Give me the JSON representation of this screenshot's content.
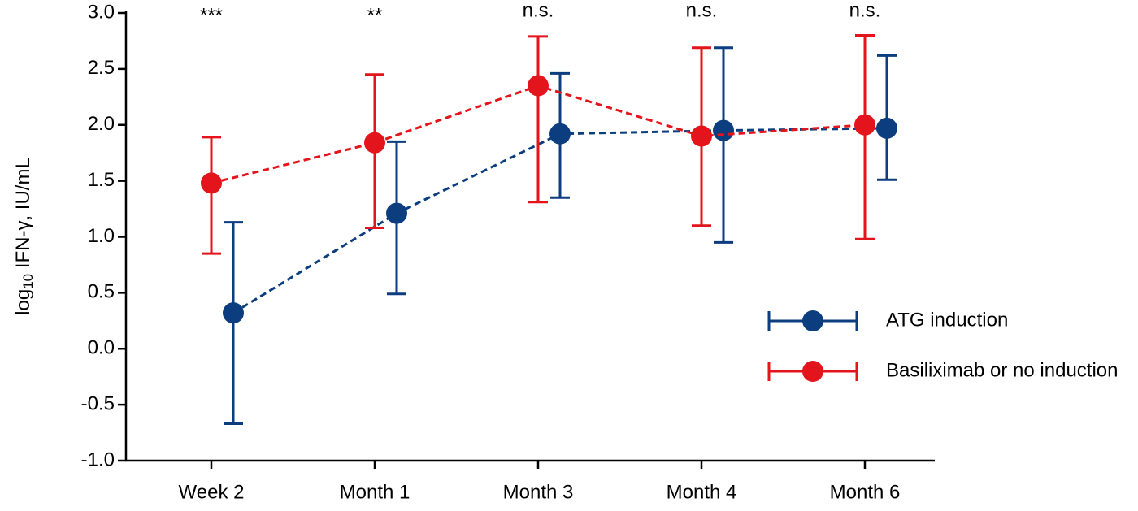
{
  "chart_data": {
    "type": "line",
    "ylabel": [
      "log",
      "10",
      " IFN-γ, IU/mL"
    ],
    "categories": [
      "Week 2",
      "Month 1",
      "Month 3",
      "Month 4",
      "Month 6"
    ],
    "annotations": [
      "***",
      "**",
      "n.s.",
      "n.s.",
      "n.s."
    ],
    "ylim": [
      -1,
      3
    ],
    "yticks": [
      {
        "value": -1,
        "label": "-1.0"
      },
      {
        "value": -0.5,
        "label": "-0.5"
      },
      {
        "value": 0,
        "label": "0.0"
      },
      {
        "value": 0.5,
        "label": "0.5"
      },
      {
        "value": 1,
        "label": "1.0"
      },
      {
        "value": 1.5,
        "label": "1.5"
      },
      {
        "value": 2,
        "label": "2.0"
      },
      {
        "value": 2.5,
        "label": "2.5"
      },
      {
        "value": 3,
        "label": "3.0"
      }
    ],
    "legend": "right",
    "series": [
      {
        "name": "ATG induction",
        "color": "#0b3d7f",
        "values": [
          0.32,
          1.21,
          1.92,
          1.95,
          1.97
        ],
        "lower": [
          -0.67,
          0.49,
          1.35,
          0.95,
          1.51
        ],
        "upper": [
          1.13,
          1.85,
          2.46,
          2.69,
          2.62
        ]
      },
      {
        "name": "Basiliximab or no induction",
        "color": "#e3141b",
        "values": [
          1.48,
          1.84,
          2.35,
          1.9,
          2.0
        ],
        "lower": [
          0.85,
          1.08,
          1.31,
          1.1,
          0.98
        ],
        "upper": [
          1.89,
          2.45,
          2.79,
          2.69,
          2.8
        ]
      }
    ]
  }
}
